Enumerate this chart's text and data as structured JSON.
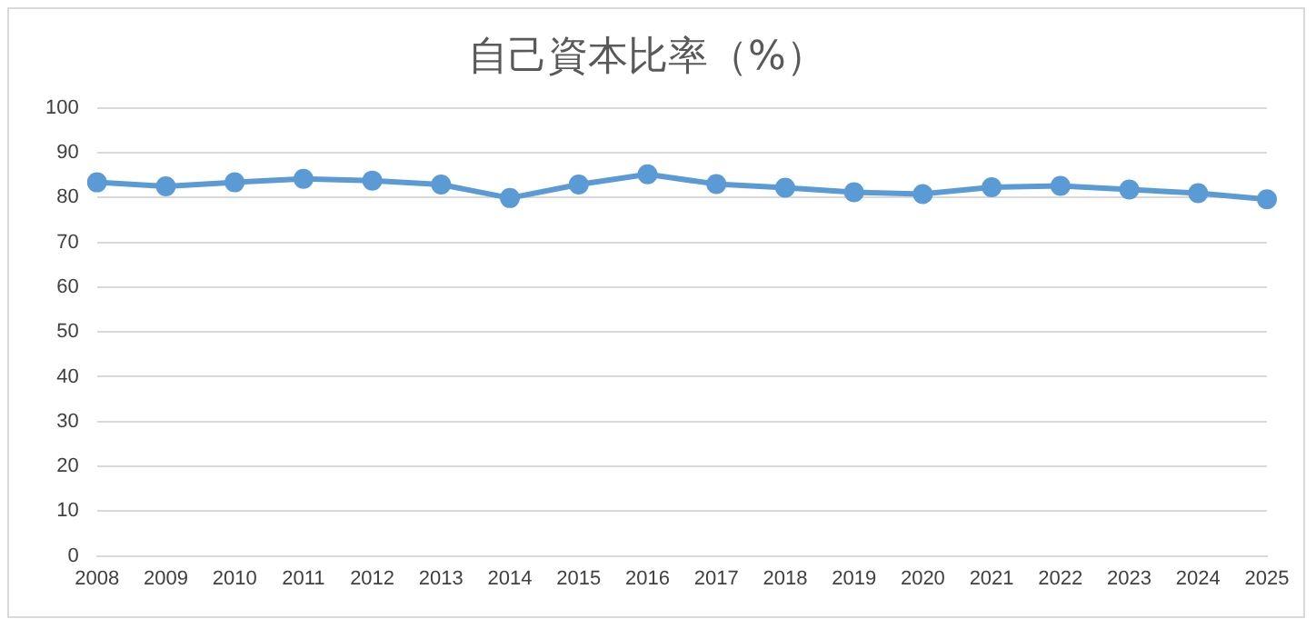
{
  "chart_data": {
    "type": "line",
    "title": "自己資本比率（%）",
    "categories": [
      "2008",
      "2009",
      "2010",
      "2011",
      "2012",
      "2013",
      "2014",
      "2015",
      "2016",
      "2017",
      "2018",
      "2019",
      "2020",
      "2021",
      "2022",
      "2023",
      "2024",
      "2025"
    ],
    "series": [
      {
        "color": "#5b9bd5",
        "values": [
          83.4,
          82.5,
          83.4,
          84.2,
          83.8,
          82.9,
          79.9,
          82.9,
          85.2,
          83.0,
          82.2,
          81.2,
          80.8,
          82.3,
          82.6,
          81.8,
          81.0,
          79.6
        ]
      }
    ],
    "ylim": [
      0,
      100
    ],
    "yticks": [
      0,
      10,
      20,
      30,
      40,
      50,
      60,
      70,
      80,
      90,
      100
    ],
    "grid": "y",
    "marker": "circle",
    "line_style": "solid",
    "legend": false
  }
}
